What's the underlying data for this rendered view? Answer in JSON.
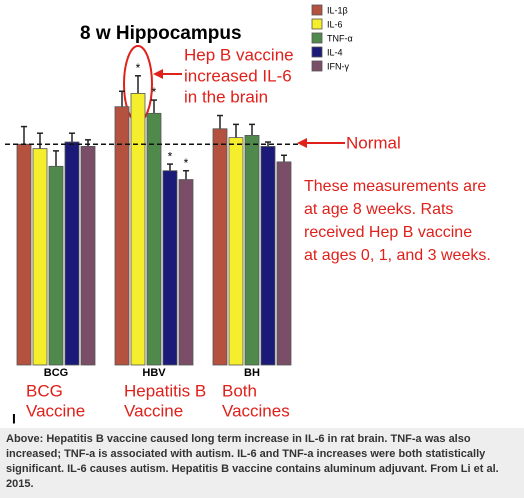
{
  "chart_data": {
    "type": "bar",
    "title": "8 w Hippocampus",
    "categories": [
      "BCG",
      "HBV",
      "BH"
    ],
    "category_notes": [
      [
        "BCG",
        "Vaccine"
      ],
      [
        "Hepatitis B",
        "Vaccine"
      ],
      [
        "Both",
        "Vaccines"
      ]
    ],
    "series": [
      {
        "name": "IL-1β",
        "color": "#b4523f",
        "values": [
          100,
          117,
          107
        ],
        "errors": [
          8,
          7,
          6
        ],
        "significant": [
          false,
          false,
          false
        ]
      },
      {
        "name": "IL-6",
        "color": "#f4ee2c",
        "values": [
          98,
          123,
          103
        ],
        "errors": [
          7,
          8,
          6
        ],
        "significant": [
          false,
          true,
          false
        ]
      },
      {
        "name": "TNF-α",
        "color": "#4f8a4c",
        "values": [
          90,
          114,
          104
        ],
        "errors": [
          7,
          6,
          5
        ],
        "significant": [
          false,
          true,
          false
        ]
      },
      {
        "name": "IL-4",
        "color": "#1c1a78",
        "values": [
          101,
          88,
          99
        ],
        "errors": [
          4,
          3,
          2
        ],
        "significant": [
          false,
          true,
          false
        ]
      },
      {
        "name": "IFN-γ",
        "color": "#7b4e68",
        "values": [
          99,
          84,
          92
        ],
        "errors": [
          3,
          4,
          3
        ],
        "significant": [
          false,
          true,
          false
        ]
      }
    ],
    "significance_label": "*",
    "ylim": [
      0,
      130
    ],
    "reference_line": {
      "value": 100,
      "label": "Normal"
    },
    "annotation_lines": [
      "Hep B vaccine",
      "increased IL-6",
      "in the brain"
    ],
    "note_lines": [
      "These measurements are",
      "at age 8 weeks. Rats",
      "received Hep B vaccine",
      "at ages 0, 1, and 3 weeks."
    ],
    "corner_mark": "I",
    "caption": "Above: Hepatitis B vaccine caused long term increase in IL-6 in rat brain. TNF-a was also increased; TNF-a is associated with autism. IL-6 and TNF-a increases were both statistically significant. IL-6 causes autism. Hepatitis B vaccine contains aluminum adjuvant. From Li et al. 2015."
  }
}
